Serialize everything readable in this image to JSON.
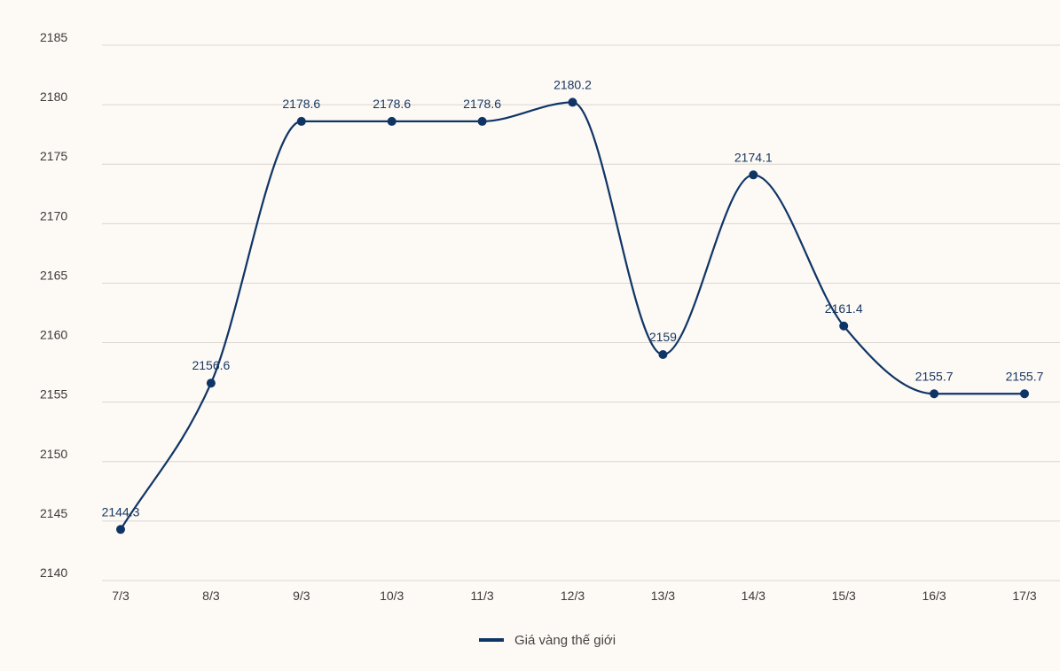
{
  "chart_data": {
    "type": "line",
    "title": "",
    "xlabel": "",
    "ylabel": "",
    "categories": [
      "7/3",
      "8/3",
      "9/3",
      "10/3",
      "11/3",
      "12/3",
      "13/3",
      "14/3",
      "15/3",
      "16/3",
      "17/3"
    ],
    "series": [
      {
        "name": "Giá vàng thế giới",
        "values": [
          2144.3,
          2156.6,
          2178.6,
          2178.6,
          2178.6,
          2180.2,
          2159,
          2174.1,
          2161.4,
          2155.7,
          2155.7
        ],
        "data_labels": [
          "2144.3",
          "2156.6",
          "2178.6",
          "2178.6",
          "2178.6",
          "2180.2",
          "2159",
          "2174.1",
          "2161.4",
          "2155.7",
          "2155.7"
        ],
        "color": "#0f3566"
      }
    ],
    "ylim": [
      2140,
      2185
    ],
    "yticks": [
      "2140",
      "2145",
      "2150",
      "2155",
      "2160",
      "2165",
      "2170",
      "2175",
      "2180",
      "2185"
    ],
    "grid": true,
    "legend": {
      "position": "bottom-center"
    }
  }
}
